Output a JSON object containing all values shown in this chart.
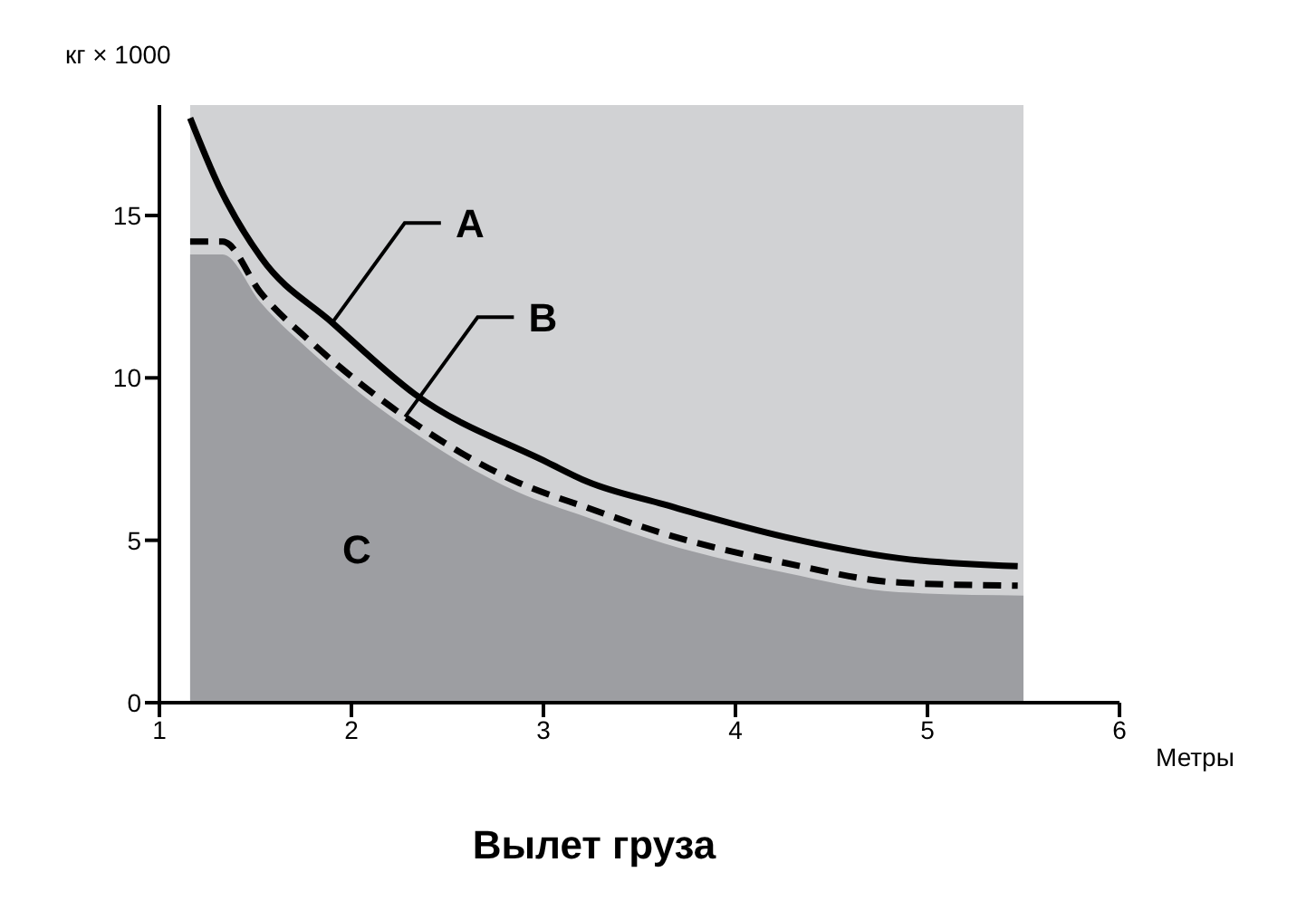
{
  "chart_data": {
    "type": "line",
    "title": "Вылет груза",
    "xlabel": "Метры",
    "ylabel": "кг × 1000",
    "xlim": [
      1,
      6
    ],
    "xticks": [
      1,
      2,
      3,
      4,
      5,
      6
    ],
    "ylim": [
      0,
      18.4
    ],
    "yticks": [
      0,
      5,
      10,
      15
    ],
    "bands": [
      {
        "axis": "x",
        "from": 1.16,
        "to": 5.5,
        "color": "#d1d2d4"
      }
    ],
    "series": [
      {
        "type": "area",
        "color": "#9d9ea2",
        "x": [
          1.16,
          1.33,
          1.53,
          1.81,
          2.28,
          2.86,
          3.23,
          3.63,
          4.26,
          4.85,
          5.5
        ],
        "values": [
          13.8,
          13.8,
          12.3,
          10.7,
          8.5,
          6.5,
          5.7,
          4.9,
          4.0,
          3.4,
          3.3
        ]
      },
      {
        "color": "#000000",
        "line_style": "solid",
        "x": [
          1.16,
          1.31,
          1.53,
          1.9,
          2.33,
          3.02,
          3.23,
          3.63,
          4.26,
          4.85,
          5.47
        ],
        "values": [
          18.0,
          15.9,
          13.7,
          11.7,
          9.5,
          7.4,
          6.8,
          6.1,
          5.1,
          4.45,
          4.2
        ]
      },
      {
        "color": "#000000",
        "line_style": "dashed",
        "x": [
          1.16,
          1.33,
          1.53,
          1.81,
          2.28,
          2.86,
          3.23,
          3.63,
          4.26,
          4.85,
          5.47
        ],
        "values": [
          14.2,
          14.2,
          12.6,
          11.0,
          8.8,
          6.8,
          6.0,
          5.2,
          4.3,
          3.7,
          3.6
        ]
      }
    ],
    "annotations": [
      {
        "text": "A",
        "x": 1.9,
        "y": 11.7
      },
      {
        "text": "B",
        "x": 2.28,
        "y": 8.8
      },
      "C"
    ]
  }
}
